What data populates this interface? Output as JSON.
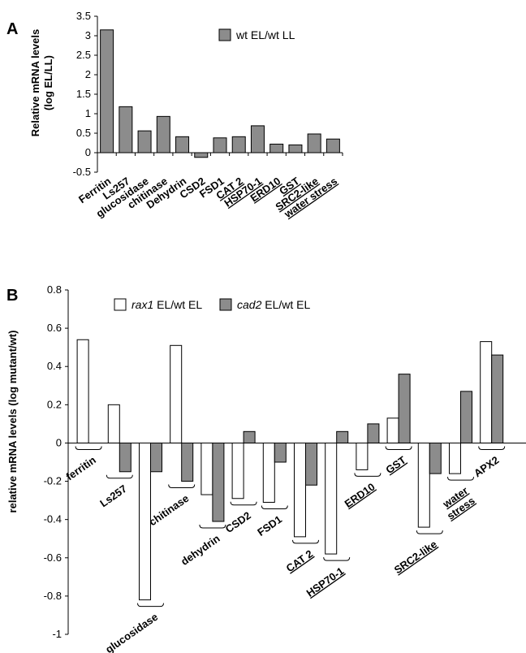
{
  "chart_data": [
    {
      "type": "bar",
      "panel_label": "A",
      "ylabel_line1": "Relative mRNA levels",
      "ylabel_line2": "(log EL/LL)",
      "ylim": [
        -0.5,
        3.5
      ],
      "yticks": [
        "-0.5",
        "0",
        "0.5",
        "1",
        "1.5",
        "2",
        "2.5",
        "3",
        "3.5"
      ],
      "legend_position": "top-center",
      "categories": [
        "Ferritin",
        "Ls257",
        "glucosidase",
        "chitinase",
        "Dehydrin",
        "CSD2",
        "FSD1",
        "CAT 2",
        "HSP70-1",
        "ERD10",
        "GST",
        "SRC2-like",
        "water stress"
      ],
      "underlined": [
        false,
        false,
        false,
        false,
        false,
        false,
        false,
        true,
        true,
        true,
        true,
        true,
        true
      ],
      "series": [
        {
          "name": "wt EL/wt LL",
          "color": "#8c8c8c",
          "values": [
            3.15,
            1.18,
            0.56,
            0.93,
            0.41,
            -0.12,
            0.38,
            0.41,
            0.69,
            0.22,
            0.2,
            0.48,
            0.35
          ]
        }
      ]
    },
    {
      "type": "bar",
      "panel_label": "B",
      "ylabel": "relative mRNA levels (log mutant/wt)",
      "ylim": [
        -1,
        0.8
      ],
      "yticks": [
        "0.8",
        "0.6",
        "0.4",
        "0.2",
        "0",
        "-0.2",
        "-0.4",
        "-0.6",
        "-0.8",
        "-1"
      ],
      "legend_position": "top-left",
      "categories": [
        "ferritin",
        "Ls257",
        "glucosidase",
        "chitinase",
        "dehydrin",
        "CSD2",
        "FSD1",
        "CAT 2",
        "HSP70-1",
        "ERD10",
        "GST",
        "SRC2-like",
        "water stress",
        "APX2"
      ],
      "category_lines": [
        [
          "ferritin"
        ],
        [
          "Ls257"
        ],
        [
          "glucosidase"
        ],
        [
          "chitinase"
        ],
        [
          "dehydrin"
        ],
        [
          "CSD2"
        ],
        [
          "FSD1"
        ],
        [
          "CAT 2"
        ],
        [
          "HSP70-1"
        ],
        [
          "ERD10"
        ],
        [
          "GST"
        ],
        [
          "SRC2-like"
        ],
        [
          "water",
          "stress"
        ],
        [
          "APX2"
        ]
      ],
      "underlined": [
        false,
        false,
        false,
        false,
        false,
        false,
        false,
        true,
        true,
        true,
        true,
        true,
        true,
        false
      ],
      "series": [
        {
          "name": "rax1",
          "name_suffix": " EL/wt EL",
          "color": "#ffffff",
          "values": [
            0.54,
            0.2,
            -0.82,
            0.51,
            -0.27,
            -0.29,
            -0.31,
            -0.49,
            -0.58,
            -0.14,
            0.13,
            -0.44,
            -0.16,
            0.53
          ]
        },
        {
          "name": "cad2",
          "name_suffix": " EL/wt EL",
          "color": "#8c8c8c",
          "values": [
            null,
            -0.15,
            -0.15,
            -0.2,
            -0.41,
            0.06,
            -0.1,
            -0.22,
            0.06,
            0.1,
            0.36,
            -0.16,
            0.27,
            0.46
          ]
        }
      ]
    }
  ]
}
